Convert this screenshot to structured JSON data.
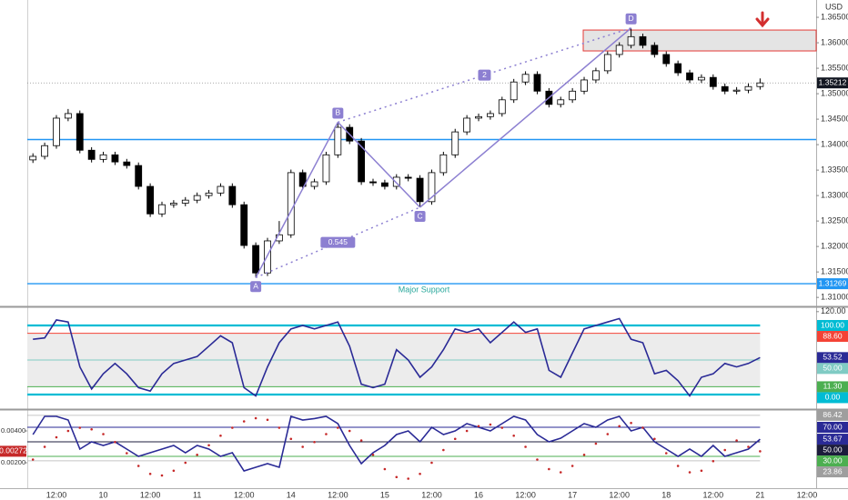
{
  "chart_data": [
    {
      "type": "candlestick",
      "currency": "USD",
      "categories": [
        null,
        null,
        "12:00",
        null,
        null,
        null,
        "10",
        null,
        null,
        null,
        "12:00",
        null,
        null,
        null,
        "11",
        null,
        null,
        null,
        "12:00",
        null,
        null,
        null,
        "14",
        null,
        null,
        null,
        "12:00",
        null,
        null,
        null,
        "15",
        null,
        null,
        null,
        "12:00",
        null,
        null,
        null,
        "16",
        null,
        null,
        null,
        "12:00",
        null,
        null,
        null,
        "17",
        null,
        null,
        null,
        "12:00",
        null,
        null,
        null,
        "18",
        null,
        null,
        null,
        "12:00",
        null,
        null,
        null,
        "21",
        null,
        null,
        null,
        "12:00"
      ],
      "open": [
        1.337,
        1.3377,
        1.3398,
        1.3452,
        1.3461,
        1.3389,
        1.3371,
        1.338,
        1.3366,
        1.3359,
        1.3318,
        1.3264,
        1.3282,
        1.3285,
        1.3291,
        1.33,
        1.3305,
        1.3318,
        1.3282,
        1.3202,
        1.3148,
        1.3211,
        1.3223,
        1.3345,
        1.3318,
        1.3327,
        1.338,
        1.3434,
        1.3407,
        1.3327,
        1.3325,
        1.3318,
        1.3336,
        1.3334,
        1.3288,
        1.3345,
        1.338,
        1.3425,
        1.3452,
        1.3455,
        1.3461,
        1.3488,
        1.3523,
        1.3538,
        1.3505,
        1.3479,
        1.3488,
        1.3505,
        1.3527,
        1.3545,
        1.3577,
        1.3595,
        1.3612,
        1.3595,
        1.3577,
        1.3559,
        1.3541,
        1.3527,
        1.3532,
        1.3514,
        1.3505,
        1.3507,
        1.3514,
        null,
        null,
        null,
        null
      ],
      "high": [
        1.3383,
        1.3404,
        1.3458,
        1.347,
        1.3467,
        1.3395,
        1.3386,
        1.3386,
        1.3372,
        1.3365,
        1.3324,
        1.3288,
        1.3291,
        1.3297,
        1.3306,
        1.3311,
        1.3324,
        1.3324,
        1.3288,
        1.3208,
        1.3217,
        1.325,
        1.3351,
        1.3351,
        1.3333,
        1.3386,
        1.3444,
        1.344,
        1.3413,
        1.3333,
        1.3331,
        1.3342,
        1.3342,
        1.334,
        1.3351,
        1.3386,
        1.3431,
        1.3458,
        1.3461,
        1.3467,
        1.3494,
        1.3529,
        1.3544,
        1.3544,
        1.3511,
        1.3494,
        1.3511,
        1.3533,
        1.3551,
        1.3583,
        1.3601,
        1.3629,
        1.3618,
        1.3601,
        1.3583,
        1.3565,
        1.3547,
        1.3538,
        1.3538,
        1.352,
        1.3513,
        1.352,
        1.353,
        null,
        null,
        null,
        null
      ],
      "low": [
        1.3364,
        1.3371,
        1.3392,
        1.3446,
        1.3383,
        1.3365,
        1.3365,
        1.336,
        1.3353,
        1.3312,
        1.3258,
        1.3258,
        1.3276,
        1.3279,
        1.3285,
        1.3294,
        1.3299,
        1.3276,
        1.3196,
        1.3139,
        1.3142,
        1.3205,
        1.3217,
        1.3312,
        1.3312,
        1.3321,
        1.3374,
        1.3401,
        1.3321,
        1.3319,
        1.3312,
        1.3312,
        1.3328,
        1.3277,
        1.3282,
        1.3339,
        1.3374,
        1.3419,
        1.3446,
        1.3449,
        1.3455,
        1.3482,
        1.3517,
        1.3499,
        1.3473,
        1.3473,
        1.3482,
        1.3499,
        1.3521,
        1.3539,
        1.3571,
        1.3589,
        1.3589,
        1.3571,
        1.3553,
        1.3535,
        1.3521,
        1.3521,
        1.3508,
        1.3499,
        1.3499,
        1.3501,
        1.3508,
        null,
        null,
        null,
        null
      ],
      "close": [
        1.3377,
        1.3398,
        1.3452,
        1.3461,
        1.3389,
        1.3371,
        1.338,
        1.3366,
        1.3359,
        1.3318,
        1.3264,
        1.3282,
        1.3285,
        1.3291,
        1.33,
        1.3305,
        1.3318,
        1.3282,
        1.3202,
        1.3148,
        1.3211,
        1.3223,
        1.3345,
        1.3318,
        1.3327,
        1.338,
        1.3434,
        1.3407,
        1.3327,
        1.3325,
        1.3318,
        1.3336,
        1.3334,
        1.3288,
        1.3345,
        1.338,
        1.3425,
        1.3452,
        1.3455,
        1.3461,
        1.3488,
        1.3523,
        1.3538,
        1.3505,
        1.3479,
        1.3488,
        1.3505,
        1.3527,
        1.3545,
        1.3577,
        1.3595,
        1.3612,
        1.3595,
        1.3577,
        1.3559,
        1.3541,
        1.3527,
        1.3532,
        1.3514,
        1.3505,
        1.3507,
        1.3514,
        1.35212,
        null,
        null,
        null,
        null
      ],
      "up_color": "#ffffff",
      "down_color": "#000000",
      "wick_color": "#000000",
      "ylim": [
        1.3086,
        1.3684
      ],
      "yticks": [
        {
          "value": 1.365,
          "label": "1.36500"
        },
        {
          "value": 1.36,
          "label": "1.36000"
        },
        {
          "value": 1.355,
          "label": "1.35500"
        },
        {
          "value": 1.35,
          "label": "1.35000"
        },
        {
          "value": 1.345,
          "label": "1.34500"
        },
        {
          "value": 1.34,
          "label": "1.34000"
        },
        {
          "value": 1.335,
          "label": "1.33500"
        },
        {
          "value": 1.33,
          "label": "1.33000"
        },
        {
          "value": 1.325,
          "label": "1.32500"
        },
        {
          "value": 1.32,
          "label": "1.32000"
        },
        {
          "value": 1.315,
          "label": "1.31500"
        },
        {
          "value": 1.31,
          "label": "1.31000"
        }
      ],
      "last_price": {
        "value": 1.35212,
        "label": "1.35212",
        "color": "#131722"
      },
      "levels": [
        {
          "value": 1.341,
          "color": "#2196f3"
        },
        {
          "value": 1.31269,
          "label": "1.31269",
          "color": "#2196f3"
        }
      ],
      "zone": {
        "from": 1.3584,
        "to": 1.3625,
        "fill": "#d9d9d9",
        "stroke": "#e53935"
      },
      "pattern": {
        "color": "#8c7fd1",
        "points": [
          {
            "label": "A",
            "value": 1.3139
          },
          {
            "label": "B",
            "value": 1.3444
          },
          {
            "label": "C",
            "value": 1.3277
          },
          {
            "label": "D",
            "value": 1.3629
          }
        ],
        "ratios": [
          {
            "label": "2"
          },
          {
            "label": "0.545"
          }
        ]
      },
      "annotations": [
        {
          "text": "Major Support",
          "color": "#26a69a"
        }
      ]
    },
    {
      "type": "line",
      "series": [
        {
          "color": "#2a2a96",
          "values": [
            80,
            82,
            108,
            105,
            40,
            8,
            30,
            45,
            30,
            10,
            5,
            30,
            45,
            50,
            55,
            70,
            85,
            75,
            10,
            -2,
            40,
            75,
            95,
            100,
            95,
            100,
            105,
            70,
            15,
            10,
            15,
            65,
            50,
            25,
            40,
            65,
            95,
            90,
            95,
            75,
            90,
            105,
            90,
            95,
            35,
            25,
            60,
            95,
            100,
            105,
            110,
            80,
            75,
            30,
            35,
            20,
            -2,
            25,
            30,
            45,
            40,
            45,
            53.52,
            null,
            null,
            null,
            null
          ],
          "current": {
            "value": 53.52,
            "label": "53.52"
          }
        }
      ],
      "ylim": [
        -18.4,
        123.7
      ],
      "yticks": [
        {
          "value": 120,
          "label": "120.00"
        }
      ],
      "levels": [
        {
          "value": 100,
          "label": "100.00",
          "color": "#00bcd4"
        },
        {
          "value": 88.6,
          "label": "88.60",
          "color": "#f44336"
        },
        {
          "value": 50,
          "label": "50.00",
          "color": "#80cbc4"
        },
        {
          "value": 11.3,
          "label": "11.30",
          "color": "#4caf50"
        },
        {
          "value": 0,
          "label": "0.00",
          "color": "#00bcd4"
        }
      ]
    },
    {
      "type": "line",
      "series": [
        {
          "color": "#2a2a96",
          "style": "line",
          "values": [
            60,
            85,
            85,
            80,
            40,
            50,
            45,
            50,
            40,
            30,
            35,
            40,
            45,
            35,
            45,
            40,
            30,
            35,
            10,
            15,
            20,
            15,
            85,
            80,
            82,
            85,
            75,
            45,
            20,
            35,
            45,
            60,
            65,
            50,
            70,
            60,
            65,
            75,
            70,
            65,
            75,
            85,
            80,
            60,
            50,
            55,
            65,
            75,
            70,
            80,
            85,
            65,
            70,
            50,
            40,
            30,
            40,
            30,
            45,
            30,
            35,
            40,
            53.67,
            null,
            null,
            null,
            null
          ],
          "current": {
            "value": 53.67,
            "label": "53.67"
          }
        },
        {
          "color": "#c62828",
          "style": "dots",
          "axis": "y2",
          "values": [
            0.0022,
            0.003,
            0.0036,
            0.004,
            0.0042,
            0.0041,
            0.0038,
            0.0033,
            0.0026,
            0.0018,
            0.0013,
            0.0012,
            0.0015,
            0.002,
            0.0025,
            0.0031,
            0.0037,
            0.0042,
            0.0046,
            0.0048,
            0.0047,
            0.0042,
            0.0035,
            0.003,
            0.0033,
            0.0038,
            0.0042,
            0.004,
            0.0034,
            0.0025,
            0.0016,
            0.0011,
            0.001,
            0.0013,
            0.002,
            0.0028,
            0.0035,
            0.004,
            0.0043,
            0.0044,
            0.0042,
            0.0037,
            0.003,
            0.0022,
            0.0016,
            0.0014,
            0.0018,
            0.0025,
            0.0032,
            0.0038,
            0.0043,
            0.0045,
            0.0042,
            0.0035,
            0.0026,
            0.0018,
            0.0014,
            0.0015,
            0.0021,
            0.0028,
            0.0034,
            0.003,
            0.00272,
            null,
            null,
            null,
            null
          ],
          "current": {
            "value": 0.00272,
            "label": "0.00272"
          }
        }
      ],
      "ylim": [
        -13.75,
        92.5
      ],
      "y2lim": [
        0.0004,
        0.005257
      ],
      "y2ticks": [
        {
          "value": 0.004,
          "label": "0.00400"
        },
        {
          "value": 0.002,
          "label": "0.00200"
        }
      ],
      "levels": [
        {
          "value": 86.42,
          "label": "86.42",
          "color": "#9e9e9e"
        },
        {
          "value": 70,
          "label": "70.00",
          "color": "#2a2a96"
        },
        {
          "value": 50,
          "label": "50.00",
          "color": "#1c1c3c"
        },
        {
          "value": 30,
          "label": "30.00",
          "color": "#4caf50"
        },
        {
          "value": 23.86,
          "label": "23.86",
          "color": "#9e9e9e"
        }
      ]
    }
  ]
}
